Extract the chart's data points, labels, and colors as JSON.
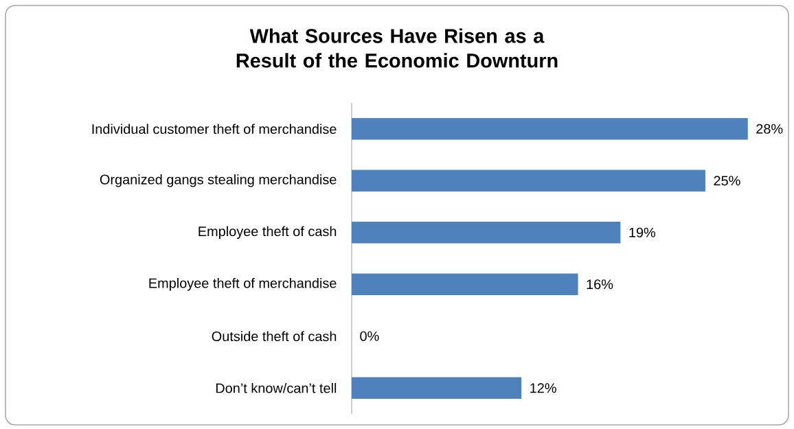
{
  "chart_data": {
    "type": "bar",
    "orientation": "horizontal",
    "title": "What Sources Have Risen as a Result of the Economic Downturn",
    "categories": [
      "Individual customer theft of merchandise",
      "Organized gangs stealing merchandise",
      "Employee theft of cash",
      "Employee theft of merchandise",
      "Outside theft of cash",
      "Don’t know/can’t tell"
    ],
    "values": [
      28,
      25,
      19,
      16,
      0,
      12
    ],
    "value_labels": [
      "28%",
      "25%",
      "19%",
      "16%",
      "0%",
      "12%"
    ],
    "color": "#4f81bd"
  }
}
